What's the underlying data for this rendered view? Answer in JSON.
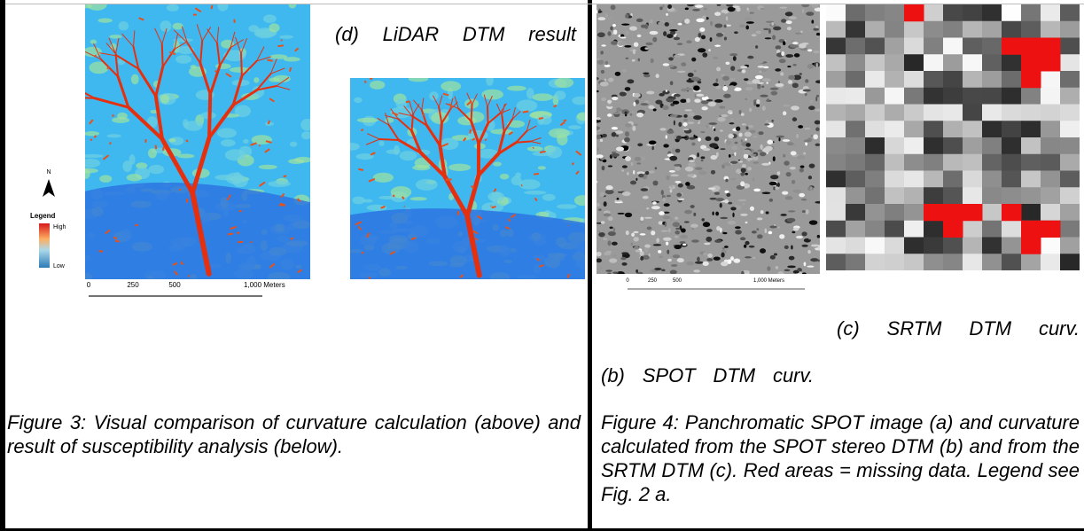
{
  "figure3": {
    "panel_d_label": "(d) LiDAR DTM result",
    "north": "N",
    "legend": {
      "title": "Legend",
      "high": "High",
      "low": "Low"
    },
    "scale": [
      "0",
      "250",
      "500",
      "1,000 Meters"
    ],
    "caption": "Figure 3: Visual comparison of curvature calculation (above) and result of susceptibility analysis (below)."
  },
  "figure4": {
    "panel_b_label": "(b) SPOT DTM curv.",
    "panel_c_label": "(c) SRTM DTM curv.",
    "scale": [
      "0",
      "250",
      "500",
      "1,000 Meters"
    ],
    "caption": "Figure 4: Panchromatic SPOT image (a) and curvature calculated from the SPOT stereo DTM (b) and from the SRTM DTM (c). Red areas = missing data. Legend see Fig. 2 a."
  }
}
